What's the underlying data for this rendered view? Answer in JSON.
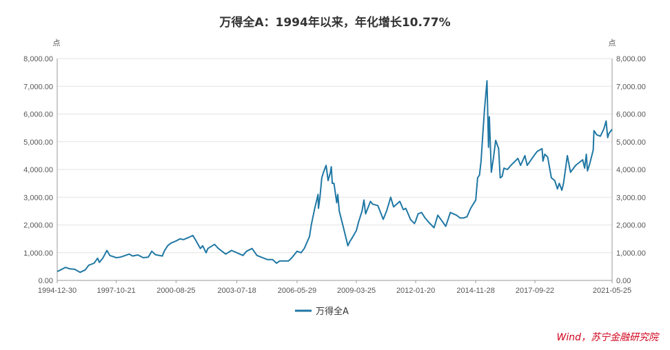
{
  "chart_data": {
    "type": "line",
    "title": "万得全A：1994年以来，年化增长10.77%",
    "y_unit_left": "点",
    "y_unit_right": "点",
    "ylim": [
      0,
      8000
    ],
    "y_ticks": [
      "0.00",
      "1,000.00",
      "2,000.00",
      "3,000.00",
      "4,000.00",
      "5,000.00",
      "6,000.00",
      "7,000.00",
      "8,000.00"
    ],
    "x_ticks": [
      "1994-12-30",
      "1997-10-21",
      "2000-08-25",
      "2003-07-18",
      "2006-05-29",
      "2009-03-25",
      "2012-01-20",
      "2014-11-28",
      "2017-09-22",
      "2021-05-25"
    ],
    "grid": true,
    "legend_position": "bottom",
    "colors": {
      "series": "#1f77a4",
      "grid": "#e3e3e3",
      "axis": "#999999",
      "source": "#d0021b"
    },
    "series": [
      {
        "name": "万得全A",
        "points": [
          [
            "1994-12-30",
            320
          ],
          [
            "1995-03-01",
            380
          ],
          [
            "1995-05-20",
            470
          ],
          [
            "1995-08-01",
            420
          ],
          [
            "1995-11-01",
            400
          ],
          [
            "1996-02-01",
            290
          ],
          [
            "1996-05-01",
            380
          ],
          [
            "1996-07-01",
            550
          ],
          [
            "1996-10-01",
            620
          ],
          [
            "1996-12-01",
            800
          ],
          [
            "1997-01-01",
            650
          ],
          [
            "1997-03-01",
            800
          ],
          [
            "1997-05-12",
            1080
          ],
          [
            "1997-07-01",
            900
          ],
          [
            "1997-10-21",
            820
          ],
          [
            "1998-01-01",
            840
          ],
          [
            "1998-03-01",
            880
          ],
          [
            "1998-06-01",
            950
          ],
          [
            "1998-08-01",
            880
          ],
          [
            "1998-11-01",
            920
          ],
          [
            "1999-02-01",
            820
          ],
          [
            "1999-05-01",
            840
          ],
          [
            "1999-06-30",
            1050
          ],
          [
            "1999-09-01",
            930
          ],
          [
            "1999-12-31",
            880
          ],
          [
            "2000-02-01",
            1050
          ],
          [
            "2000-04-01",
            1250
          ],
          [
            "2000-06-01",
            1350
          ],
          [
            "2000-08-25",
            1420
          ],
          [
            "2000-11-01",
            1500
          ],
          [
            "2001-01-01",
            1470
          ],
          [
            "2001-04-01",
            1550
          ],
          [
            "2001-06-13",
            1620
          ],
          [
            "2001-08-01",
            1450
          ],
          [
            "2001-10-22",
            1150
          ],
          [
            "2001-12-01",
            1250
          ],
          [
            "2002-01-29",
            1000
          ],
          [
            "2002-03-01",
            1150
          ],
          [
            "2002-06-24",
            1300
          ],
          [
            "2002-09-01",
            1150
          ],
          [
            "2003-01-06",
            950
          ],
          [
            "2003-04-16",
            1080
          ],
          [
            "2003-07-18",
            1000
          ],
          [
            "2003-11-01",
            900
          ],
          [
            "2004-01-01",
            1050
          ],
          [
            "2004-04-07",
            1150
          ],
          [
            "2004-07-01",
            900
          ],
          [
            "2004-09-01",
            850
          ],
          [
            "2005-01-01",
            750
          ],
          [
            "2005-04-01",
            750
          ],
          [
            "2005-06-06",
            620
          ],
          [
            "2005-08-01",
            700
          ],
          [
            "2005-12-31",
            700
          ],
          [
            "2006-03-01",
            820
          ],
          [
            "2006-05-29",
            1050
          ],
          [
            "2006-08-07",
            1000
          ],
          [
            "2006-10-01",
            1150
          ],
          [
            "2006-12-31",
            1580
          ],
          [
            "2007-02-01",
            2000
          ],
          [
            "2007-04-01",
            2600
          ],
          [
            "2007-05-29",
            3100
          ],
          [
            "2007-06-05",
            2600
          ],
          [
            "2007-07-01",
            3000
          ],
          [
            "2007-08-01",
            3700
          ],
          [
            "2007-09-01",
            3900
          ],
          [
            "2007-10-16",
            4150
          ],
          [
            "2007-11-20",
            3600
          ],
          [
            "2007-12-31",
            3900
          ],
          [
            "2008-01-14",
            4100
          ],
          [
            "2008-02-01",
            3500
          ],
          [
            "2008-03-01",
            3500
          ],
          [
            "2008-04-18",
            2800
          ],
          [
            "2008-05-06",
            3100
          ],
          [
            "2008-06-01",
            2500
          ],
          [
            "2008-08-01",
            2000
          ],
          [
            "2008-10-28",
            1250
          ],
          [
            "2008-12-01",
            1400
          ],
          [
            "2009-01-01",
            1500
          ],
          [
            "2009-03-25",
            1800
          ],
          [
            "2009-05-01",
            2100
          ],
          [
            "2009-07-01",
            2500
          ],
          [
            "2009-08-04",
            2900
          ],
          [
            "2009-09-01",
            2400
          ],
          [
            "2009-11-24",
            2850
          ],
          [
            "2010-01-01",
            2750
          ],
          [
            "2010-04-01",
            2700
          ],
          [
            "2010-07-05",
            2200
          ],
          [
            "2010-09-01",
            2500
          ],
          [
            "2010-11-11",
            3000
          ],
          [
            "2011-01-01",
            2650
          ],
          [
            "2011-04-18",
            2850
          ],
          [
            "2011-06-20",
            2550
          ],
          [
            "2011-08-01",
            2600
          ],
          [
            "2011-10-21",
            2200
          ],
          [
            "2011-12-28",
            2050
          ],
          [
            "2012-01-20",
            2150
          ],
          [
            "2012-03-01",
            2400
          ],
          [
            "2012-05-01",
            2450
          ],
          [
            "2012-07-01",
            2250
          ],
          [
            "2012-09-01",
            2100
          ],
          [
            "2012-12-04",
            1900
          ],
          [
            "2013-02-06",
            2350
          ],
          [
            "2013-04-01",
            2200
          ],
          [
            "2013-06-25",
            1950
          ],
          [
            "2013-09-12",
            2450
          ],
          [
            "2013-12-31",
            2350
          ],
          [
            "2014-03-01",
            2250
          ],
          [
            "2014-05-01",
            2250
          ],
          [
            "2014-07-01",
            2300
          ],
          [
            "2014-09-01",
            2600
          ],
          [
            "2014-11-28",
            2900
          ],
          [
            "2014-12-31",
            3700
          ],
          [
            "2015-02-01",
            3800
          ],
          [
            "2015-03-01",
            4300
          ],
          [
            "2015-04-01",
            5300
          ],
          [
            "2015-05-01",
            6200
          ],
          [
            "2015-06-12",
            7200
          ],
          [
            "2015-07-08",
            4800
          ],
          [
            "2015-07-23",
            5900
          ],
          [
            "2015-08-26",
            3900
          ],
          [
            "2015-10-01",
            4400
          ],
          [
            "2015-11-10",
            5050
          ],
          [
            "2015-12-31",
            4750
          ],
          [
            "2016-01-28",
            3700
          ],
          [
            "2016-03-01",
            3750
          ],
          [
            "2016-04-01",
            4050
          ],
          [
            "2016-06-01",
            4000
          ],
          [
            "2016-08-01",
            4150
          ],
          [
            "2016-11-29",
            4400
          ],
          [
            "2017-01-16",
            4150
          ],
          [
            "2017-04-01",
            4500
          ],
          [
            "2017-05-10",
            4150
          ],
          [
            "2017-07-01",
            4300
          ],
          [
            "2017-09-22",
            4550
          ],
          [
            "2017-11-01",
            4650
          ],
          [
            "2018-01-24",
            4750
          ],
          [
            "2018-02-09",
            4300
          ],
          [
            "2018-03-12",
            4550
          ],
          [
            "2018-05-01",
            4450
          ],
          [
            "2018-07-05",
            3700
          ],
          [
            "2018-09-01",
            3600
          ],
          [
            "2018-10-18",
            3300
          ],
          [
            "2018-11-20",
            3500
          ],
          [
            "2019-01-03",
            3250
          ],
          [
            "2019-02-01",
            3500
          ],
          [
            "2019-04-08",
            4500
          ],
          [
            "2019-06-01",
            3900
          ],
          [
            "2019-09-01",
            4150
          ],
          [
            "2019-12-31",
            4350
          ],
          [
            "2020-02-03",
            4050
          ],
          [
            "2020-03-03",
            4550
          ],
          [
            "2020-03-23",
            3950
          ],
          [
            "2020-05-01",
            4200
          ],
          [
            "2020-07-01",
            4700
          ],
          [
            "2020-07-14",
            5400
          ],
          [
            "2020-09-01",
            5250
          ],
          [
            "2020-11-01",
            5200
          ],
          [
            "2020-12-31",
            5450
          ],
          [
            "2021-02-10",
            5750
          ],
          [
            "2021-03-09",
            5150
          ],
          [
            "2021-04-01",
            5300
          ],
          [
            "2021-05-25",
            5450
          ]
        ]
      }
    ],
    "source": "Wind，苏宁金融研究院"
  }
}
